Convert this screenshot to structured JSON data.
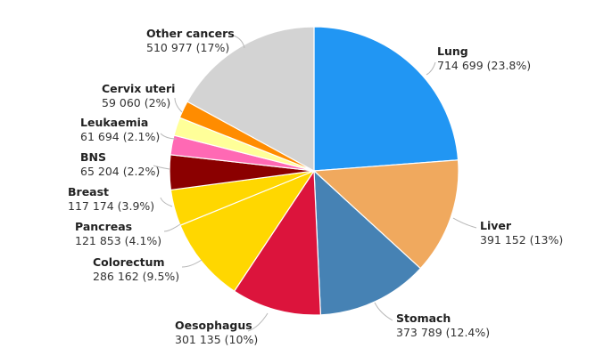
{
  "chart_data": {
    "type": "pie",
    "title": "",
    "slices": [
      {
        "name": "Lung",
        "value": 714699,
        "value_label": "714 699 (23.8%)",
        "percent": 23.8,
        "color": "#2196F3"
      },
      {
        "name": "Liver",
        "value": 391152,
        "value_label": "391 152 (13%)",
        "percent": 13.0,
        "color": "#F0A95E"
      },
      {
        "name": "Stomach",
        "value": 373789,
        "value_label": "373 789 (12.4%)",
        "percent": 12.4,
        "color": "#4682B4"
      },
      {
        "name": "Oesophagus",
        "value": 301135,
        "value_label": "301 135 (10%)",
        "percent": 10.0,
        "color": "#DC143C"
      },
      {
        "name": "Colorectum",
        "value": 286162,
        "value_label": "286 162 (9.5%)",
        "percent": 9.5,
        "color": "#FFD700"
      },
      {
        "name": "Pancreas",
        "value": 121853,
        "value_label": "121 853 (4.1%)",
        "percent": 4.1,
        "color": "#FFD700"
      },
      {
        "name": "Breast",
        "value": 117174,
        "value_label": "117 174 (3.9%)",
        "percent": 3.9,
        "color": "#8B0000"
      },
      {
        "name": "BNS",
        "value": 65204,
        "value_label": "65 204 (2.2%)",
        "percent": 2.2,
        "color": "#FF69B4"
      },
      {
        "name": "Leukaemia",
        "value": 61694,
        "value_label": "61 694 (2.1%)",
        "percent": 2.1,
        "color": "#FFFF99"
      },
      {
        "name": "Cervix uteri",
        "value": 59060,
        "value_label": "59 060 (2%)",
        "percent": 2.0,
        "color": "#FF8C00"
      },
      {
        "name": "Other cancers",
        "value": 510977,
        "value_label": "510 977 (17%)",
        "percent": 17.0,
        "color": "#D3D3D3"
      }
    ],
    "start_angle_deg": 0,
    "direction": "clockwise",
    "legend": "none",
    "labels": "outside with leader lines"
  }
}
